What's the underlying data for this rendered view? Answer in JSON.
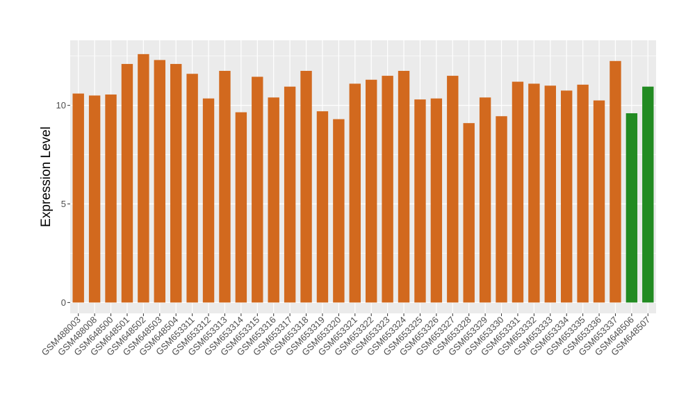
{
  "chart_data": {
    "type": "bar",
    "xlabel": "",
    "ylabel": "Expression Level",
    "ylim": [
      -0.55,
      13.3
    ],
    "yticks": [
      0,
      5,
      10
    ],
    "grid": true,
    "legend": "none",
    "colors": {
      "panel": "#ebebeb",
      "grid": "#ffffff",
      "default_bar": "#d2691e",
      "highlight_bar": "#228b22"
    },
    "categories": [
      "GSM488003",
      "GSM488008",
      "GSM648500",
      "GSM648501",
      "GSM648502",
      "GSM648503",
      "GSM648504",
      "GSM653311",
      "GSM653312",
      "GSM653313",
      "GSM653314",
      "GSM653315",
      "GSM653316",
      "GSM653317",
      "GSM653318",
      "GSM653319",
      "GSM653320",
      "GSM653321",
      "GSM653322",
      "GSM653323",
      "GSM653324",
      "GSM653325",
      "GSM653326",
      "GSM653327",
      "GSM653328",
      "GSM653329",
      "GSM653330",
      "GSM653331",
      "GSM653332",
      "GSM653333",
      "GSM653334",
      "GSM653335",
      "GSM653336",
      "GSM653337",
      "GSM648506",
      "GSM648507"
    ],
    "values": [
      10.6,
      10.5,
      10.55,
      12.1,
      12.6,
      12.3,
      12.1,
      11.6,
      10.35,
      11.75,
      9.65,
      11.45,
      10.4,
      10.95,
      11.75,
      9.7,
      9.3,
      11.1,
      11.3,
      11.5,
      11.75,
      10.3,
      10.35,
      11.5,
      9.1,
      10.4,
      9.45,
      11.2,
      11.1,
      11.0,
      10.75,
      11.05,
      10.25,
      12.25,
      9.6,
      10.95
    ],
    "bar_colors": [
      "#d2691e",
      "#d2691e",
      "#d2691e",
      "#d2691e",
      "#d2691e",
      "#d2691e",
      "#d2691e",
      "#d2691e",
      "#d2691e",
      "#d2691e",
      "#d2691e",
      "#d2691e",
      "#d2691e",
      "#d2691e",
      "#d2691e",
      "#d2691e",
      "#d2691e",
      "#d2691e",
      "#d2691e",
      "#d2691e",
      "#d2691e",
      "#d2691e",
      "#d2691e",
      "#d2691e",
      "#d2691e",
      "#d2691e",
      "#d2691e",
      "#d2691e",
      "#d2691e",
      "#d2691e",
      "#d2691e",
      "#d2691e",
      "#d2691e",
      "#d2691e",
      "#228b22",
      "#228b22"
    ]
  }
}
